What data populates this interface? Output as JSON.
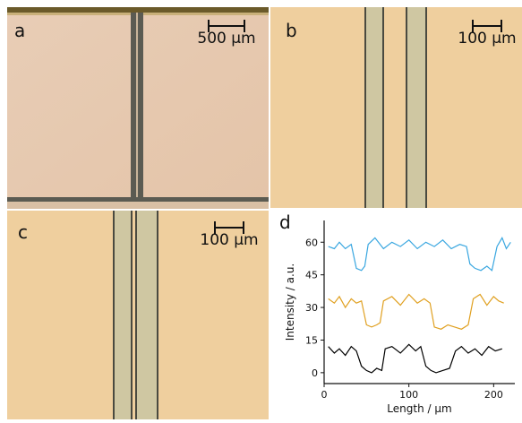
{
  "panels": {
    "a": {
      "label": "a",
      "scale_bar": "500 µm"
    },
    "b": {
      "label": "b",
      "scale_bar": "100 µm"
    },
    "c": {
      "label": "c",
      "scale_bar": "100 µm"
    },
    "d": {
      "label": "d"
    }
  },
  "colors": {
    "background_tint": "#e8c9a4",
    "fiber_edge": "#4a4a40",
    "series_top": "#3aa7e0",
    "series_middle": "#e0a020",
    "series_bottom": "#000000"
  },
  "chart_data": {
    "type": "line",
    "xlabel": "Length / µm",
    "ylabel": "Intensity / a.u.",
    "xlim": [
      0,
      225
    ],
    "ylim": [
      -5,
      70
    ],
    "xticks": [
      0,
      100,
      200
    ],
    "yticks": [
      0,
      15,
      30,
      45,
      60
    ],
    "grid": false,
    "series": [
      {
        "color": "#3aa7e0",
        "points": [
          [
            5,
            58
          ],
          [
            12,
            57
          ],
          [
            18,
            60
          ],
          [
            25,
            57
          ],
          [
            32,
            59
          ],
          [
            38,
            48
          ],
          [
            44,
            47
          ],
          [
            48,
            49
          ],
          [
            52,
            59
          ],
          [
            60,
            62
          ],
          [
            70,
            57
          ],
          [
            80,
            60
          ],
          [
            90,
            58
          ],
          [
            100,
            61
          ],
          [
            110,
            57
          ],
          [
            120,
            60
          ],
          [
            130,
            58
          ],
          [
            140,
            61
          ],
          [
            150,
            57
          ],
          [
            160,
            59
          ],
          [
            168,
            58
          ],
          [
            172,
            50
          ],
          [
            178,
            48
          ],
          [
            185,
            47
          ],
          [
            192,
            49
          ],
          [
            198,
            47
          ],
          [
            204,
            58
          ],
          [
            210,
            62
          ],
          [
            215,
            57
          ],
          [
            220,
            60
          ]
        ]
      },
      {
        "color": "#e0a020",
        "points": [
          [
            5,
            34
          ],
          [
            12,
            32
          ],
          [
            18,
            35
          ],
          [
            25,
            30
          ],
          [
            32,
            34
          ],
          [
            38,
            32
          ],
          [
            44,
            33
          ],
          [
            50,
            22
          ],
          [
            56,
            21
          ],
          [
            62,
            22
          ],
          [
            66,
            23
          ],
          [
            70,
            33
          ],
          [
            80,
            35
          ],
          [
            90,
            31
          ],
          [
            100,
            36
          ],
          [
            110,
            32
          ],
          [
            118,
            34
          ],
          [
            125,
            32
          ],
          [
            130,
            21
          ],
          [
            138,
            20
          ],
          [
            146,
            22
          ],
          [
            154,
            21
          ],
          [
            162,
            20
          ],
          [
            170,
            22
          ],
          [
            176,
            34
          ],
          [
            184,
            36
          ],
          [
            192,
            31
          ],
          [
            200,
            35
          ],
          [
            206,
            33
          ],
          [
            212,
            32
          ]
        ]
      },
      {
        "color": "#000000",
        "points": [
          [
            5,
            12
          ],
          [
            12,
            9
          ],
          [
            18,
            11
          ],
          [
            25,
            8
          ],
          [
            32,
            12
          ],
          [
            38,
            10
          ],
          [
            44,
            3
          ],
          [
            50,
            1
          ],
          [
            56,
            0
          ],
          [
            62,
            2
          ],
          [
            68,
            1
          ],
          [
            72,
            11
          ],
          [
            80,
            12
          ],
          [
            90,
            9
          ],
          [
            100,
            13
          ],
          [
            108,
            10
          ],
          [
            114,
            12
          ],
          [
            120,
            3
          ],
          [
            126,
            1
          ],
          [
            132,
            0
          ],
          [
            140,
            1
          ],
          [
            148,
            2
          ],
          [
            155,
            10
          ],
          [
            162,
            12
          ],
          [
            170,
            9
          ],
          [
            178,
            11
          ],
          [
            186,
            8
          ],
          [
            194,
            12
          ],
          [
            202,
            10
          ],
          [
            210,
            11
          ]
        ]
      }
    ]
  }
}
